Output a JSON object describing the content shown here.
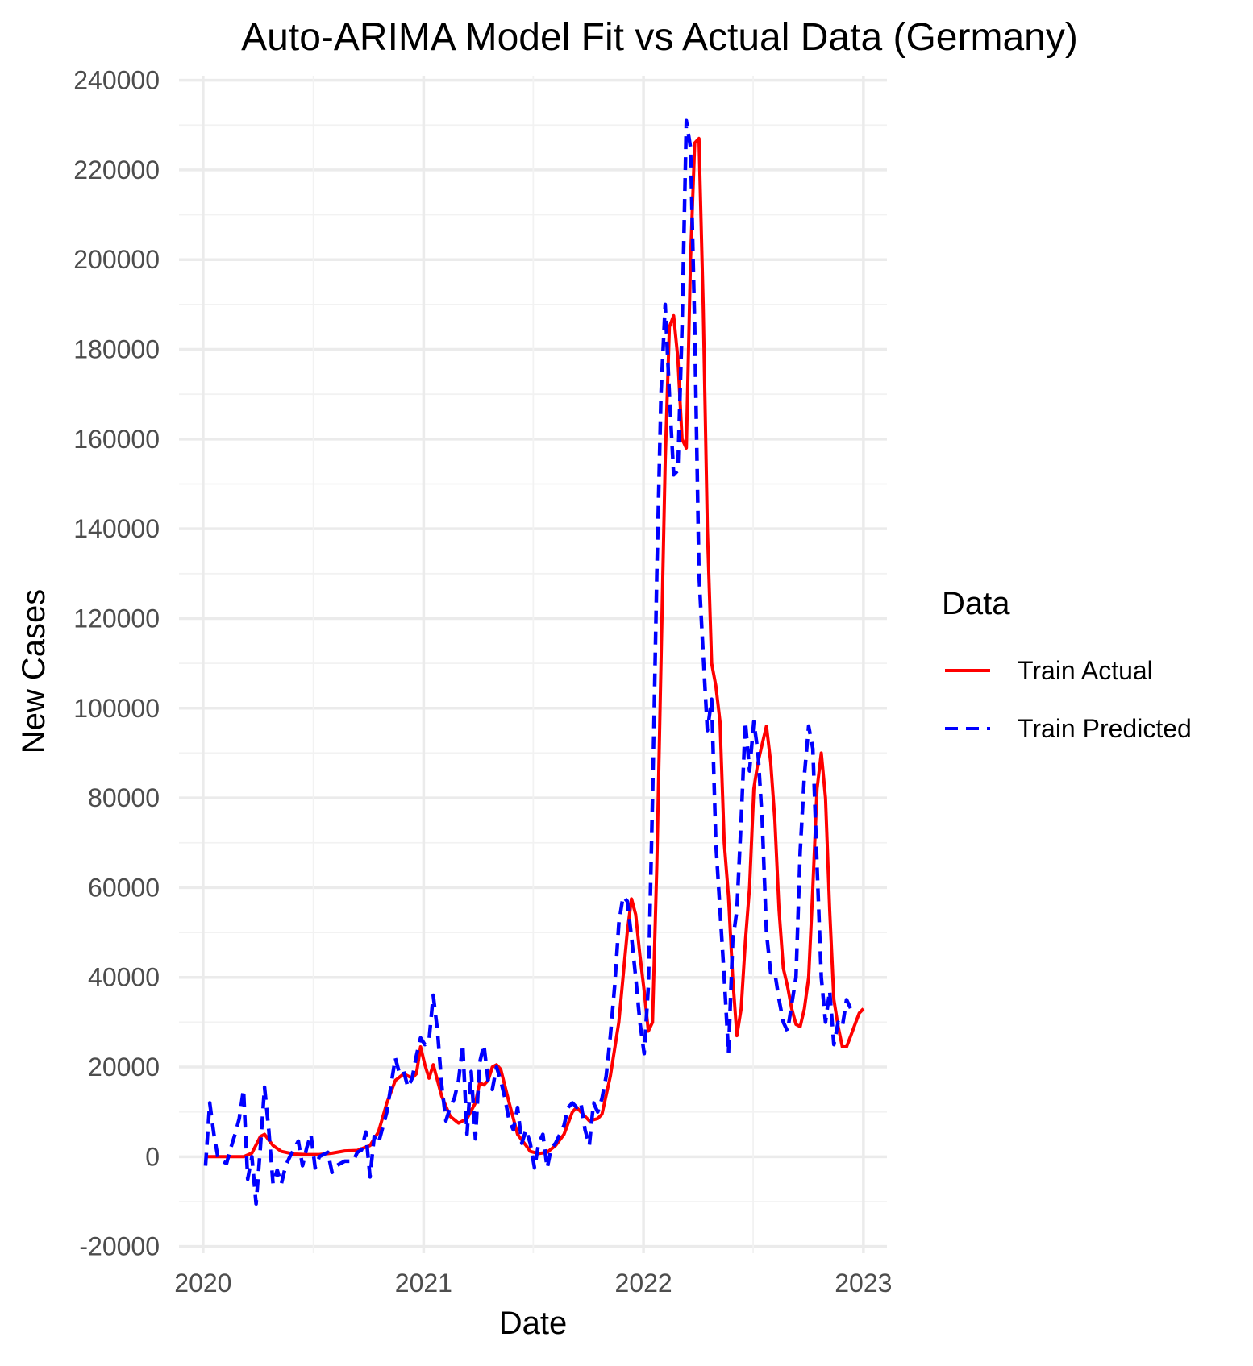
{
  "chart_data": {
    "type": "line",
    "title": "Auto-ARIMA Model Fit vs Actual Data (Germany)",
    "xlabel": "Date",
    "ylabel": "New Cases",
    "x_ticks": [
      "2020",
      "2021",
      "2022",
      "2023"
    ],
    "y_ticks": [
      -20000,
      0,
      20000,
      40000,
      60000,
      80000,
      100000,
      120000,
      140000,
      160000,
      180000,
      200000,
      220000,
      240000
    ],
    "xlim": [
      "2019-11-22",
      "2023-02-09"
    ],
    "ylim": [
      -21500,
      241000
    ],
    "grid": true,
    "legend": {
      "title": "Data",
      "position": "right"
    },
    "series": [
      {
        "name": "Train Actual",
        "color": "#ff0000",
        "dash": "solid",
        "points": [
          [
            "2020-01-05",
            0
          ],
          [
            "2020-01-26",
            0
          ],
          [
            "2020-02-16",
            0
          ],
          [
            "2020-03-08",
            0
          ],
          [
            "2020-03-22",
            800
          ],
          [
            "2020-04-05",
            4500
          ],
          [
            "2020-04-12",
            5000
          ],
          [
            "2020-04-26",
            2500
          ],
          [
            "2020-05-10",
            1200
          ],
          [
            "2020-05-31",
            600
          ],
          [
            "2020-06-21",
            500
          ],
          [
            "2020-07-12",
            500
          ],
          [
            "2020-08-02",
            800
          ],
          [
            "2020-08-23",
            1300
          ],
          [
            "2020-09-13",
            1400
          ],
          [
            "2020-10-04",
            2500
          ],
          [
            "2020-10-18",
            5500
          ],
          [
            "2020-11-01",
            12000
          ],
          [
            "2020-11-15",
            17000
          ],
          [
            "2020-11-29",
            18500
          ],
          [
            "2020-12-13",
            17500
          ],
          [
            "2020-12-20",
            18500
          ],
          [
            "2020-12-27",
            24500
          ],
          [
            "2021-01-03",
            20500
          ],
          [
            "2021-01-10",
            17500
          ],
          [
            "2021-01-17",
            20500
          ],
          [
            "2021-01-31",
            13500
          ],
          [
            "2021-02-14",
            9000
          ],
          [
            "2021-02-28",
            7500
          ],
          [
            "2021-03-14",
            8500
          ],
          [
            "2021-03-28",
            12000
          ],
          [
            "2021-04-04",
            16500
          ],
          [
            "2021-04-11",
            16000
          ],
          [
            "2021-04-18",
            17000
          ],
          [
            "2021-04-25",
            20000
          ],
          [
            "2021-05-02",
            20500
          ],
          [
            "2021-05-09",
            19500
          ],
          [
            "2021-05-23",
            12000
          ],
          [
            "2021-06-06",
            5000
          ],
          [
            "2021-06-20",
            2500
          ],
          [
            "2021-06-27",
            1200
          ],
          [
            "2021-07-11",
            700
          ],
          [
            "2021-07-25",
            1000
          ],
          [
            "2021-08-08",
            2500
          ],
          [
            "2021-08-22",
            5000
          ],
          [
            "2021-09-05",
            10000
          ],
          [
            "2021-09-12",
            11000
          ],
          [
            "2021-09-19",
            10000
          ],
          [
            "2021-10-03",
            8000
          ],
          [
            "2021-10-17",
            8500
          ],
          [
            "2021-10-24",
            9500
          ],
          [
            "2021-11-07",
            18000
          ],
          [
            "2021-11-21",
            30000
          ],
          [
            "2021-12-05",
            50000
          ],
          [
            "2021-12-12",
            57500
          ],
          [
            "2021-12-19",
            54000
          ],
          [
            "2021-12-26",
            45000
          ],
          [
            "2022-01-02",
            37000
          ],
          [
            "2022-01-09",
            28000
          ],
          [
            "2022-01-16",
            30000
          ],
          [
            "2022-01-23",
            65000
          ],
          [
            "2022-01-30",
            110000
          ],
          [
            "2022-02-06",
            155000
          ],
          [
            "2022-02-13",
            185000
          ],
          [
            "2022-02-20",
            187500
          ],
          [
            "2022-02-27",
            178000
          ],
          [
            "2022-03-06",
            160000
          ],
          [
            "2022-03-13",
            158000
          ],
          [
            "2022-03-20",
            200000
          ],
          [
            "2022-03-27",
            226000
          ],
          [
            "2022-04-03",
            227000
          ],
          [
            "2022-04-10",
            190000
          ],
          [
            "2022-04-17",
            140000
          ],
          [
            "2022-04-24",
            110000
          ],
          [
            "2022-05-01",
            105000
          ],
          [
            "2022-05-08",
            97000
          ],
          [
            "2022-05-15",
            70000
          ],
          [
            "2022-05-22",
            58000
          ],
          [
            "2022-05-29",
            40000
          ],
          [
            "2022-06-05",
            27000
          ],
          [
            "2022-06-12",
            33000
          ],
          [
            "2022-06-19",
            48000
          ],
          [
            "2022-06-26",
            60000
          ],
          [
            "2022-07-03",
            82000
          ],
          [
            "2022-07-10",
            88000
          ],
          [
            "2022-07-17",
            92000
          ],
          [
            "2022-07-24",
            96000
          ],
          [
            "2022-07-31",
            88000
          ],
          [
            "2022-08-07",
            75000
          ],
          [
            "2022-08-14",
            55000
          ],
          [
            "2022-08-21",
            42000
          ],
          [
            "2022-08-28",
            38000
          ],
          [
            "2022-09-04",
            33000
          ],
          [
            "2022-09-11",
            29500
          ],
          [
            "2022-09-18",
            29000
          ],
          [
            "2022-09-25",
            33000
          ],
          [
            "2022-10-02",
            40000
          ],
          [
            "2022-10-09",
            60000
          ],
          [
            "2022-10-16",
            82000
          ],
          [
            "2022-10-23",
            90000
          ],
          [
            "2022-10-30",
            80000
          ],
          [
            "2022-11-06",
            55000
          ],
          [
            "2022-11-13",
            35000
          ],
          [
            "2022-11-20",
            29000
          ],
          [
            "2022-11-27",
            24500
          ],
          [
            "2022-12-04",
            24500
          ],
          [
            "2022-12-11",
            27000
          ],
          [
            "2022-12-18",
            29500
          ],
          [
            "2022-12-25",
            32000
          ],
          [
            "2023-01-01",
            33000
          ]
        ]
      },
      {
        "name": "Train Predicted",
        "color": "#0000ff",
        "dash": "dashed",
        "points": [
          [
            "2020-01-05",
            -2000
          ],
          [
            "2020-01-12",
            12000
          ],
          [
            "2020-01-19",
            5000
          ],
          [
            "2020-01-26",
            -500
          ],
          [
            "2020-02-09",
            -1500
          ],
          [
            "2020-02-16",
            2000
          ],
          [
            "2020-02-23",
            5000
          ],
          [
            "2020-03-01",
            8500
          ],
          [
            "2020-03-08",
            15000
          ],
          [
            "2020-03-15",
            -5000
          ],
          [
            "2020-03-22",
            0
          ],
          [
            "2020-03-29",
            -10500
          ],
          [
            "2020-04-05",
            2000
          ],
          [
            "2020-04-12",
            15500
          ],
          [
            "2020-04-19",
            6000
          ],
          [
            "2020-04-26",
            -6000
          ],
          [
            "2020-05-03",
            -3000
          ],
          [
            "2020-05-10",
            -6000
          ],
          [
            "2020-05-17",
            -2000
          ],
          [
            "2020-05-24",
            0
          ],
          [
            "2020-06-07",
            3500
          ],
          [
            "2020-06-14",
            -2000
          ],
          [
            "2020-06-21",
            2000
          ],
          [
            "2020-06-28",
            5000
          ],
          [
            "2020-07-05",
            -2500
          ],
          [
            "2020-07-12",
            0
          ],
          [
            "2020-07-26",
            1000
          ],
          [
            "2020-08-02",
            -3500
          ],
          [
            "2020-08-09",
            -2000
          ],
          [
            "2020-08-23",
            -1000
          ],
          [
            "2020-09-06",
            -1000
          ],
          [
            "2020-09-13",
            1000
          ],
          [
            "2020-09-20",
            1500
          ],
          [
            "2020-09-27",
            5500
          ],
          [
            "2020-10-04",
            -4500
          ],
          [
            "2020-10-11",
            4500
          ],
          [
            "2020-10-18",
            3000
          ],
          [
            "2020-10-25",
            6500
          ],
          [
            "2020-11-01",
            10000
          ],
          [
            "2020-11-08",
            16000
          ],
          [
            "2020-11-15",
            22000
          ],
          [
            "2020-11-22",
            18500
          ],
          [
            "2020-11-29",
            19000
          ],
          [
            "2020-12-06",
            15500
          ],
          [
            "2020-12-13",
            17500
          ],
          [
            "2020-12-20",
            22500
          ],
          [
            "2020-12-27",
            26500
          ],
          [
            "2021-01-03",
            25000
          ],
          [
            "2021-01-10",
            26000
          ],
          [
            "2021-01-17",
            36000
          ],
          [
            "2021-01-24",
            28000
          ],
          [
            "2021-01-31",
            16000
          ],
          [
            "2021-02-07",
            8000
          ],
          [
            "2021-02-14",
            11000
          ],
          [
            "2021-02-21",
            13000
          ],
          [
            "2021-02-28",
            17000
          ],
          [
            "2021-03-07",
            25000
          ],
          [
            "2021-03-14",
            5000
          ],
          [
            "2021-03-21",
            19000
          ],
          [
            "2021-03-28",
            4000
          ],
          [
            "2021-04-04",
            21000
          ],
          [
            "2021-04-11",
            25000
          ],
          [
            "2021-04-18",
            17000
          ],
          [
            "2021-04-25",
            15000
          ],
          [
            "2021-05-02",
            20000
          ],
          [
            "2021-05-09",
            17000
          ],
          [
            "2021-05-16",
            13000
          ],
          [
            "2021-05-23",
            8000
          ],
          [
            "2021-05-30",
            6000
          ],
          [
            "2021-06-06",
            11000
          ],
          [
            "2021-06-13",
            3000
          ],
          [
            "2021-06-20",
            6000
          ],
          [
            "2021-06-27",
            3000
          ],
          [
            "2021-07-04",
            -2500
          ],
          [
            "2021-07-11",
            3000
          ],
          [
            "2021-07-18",
            5000
          ],
          [
            "2021-07-25",
            -2500
          ],
          [
            "2021-08-01",
            2000
          ],
          [
            "2021-08-08",
            3000
          ],
          [
            "2021-08-15",
            5000
          ],
          [
            "2021-08-22",
            7000
          ],
          [
            "2021-08-29",
            11000
          ],
          [
            "2021-09-05",
            12000
          ],
          [
            "2021-09-12",
            11000
          ],
          [
            "2021-09-19",
            12000
          ],
          [
            "2021-09-26",
            6000
          ],
          [
            "2021-10-03",
            2500
          ],
          [
            "2021-10-10",
            12000
          ],
          [
            "2021-10-17",
            10000
          ],
          [
            "2021-10-24",
            13000
          ],
          [
            "2021-10-31",
            18000
          ],
          [
            "2021-11-07",
            27000
          ],
          [
            "2021-11-14",
            38000
          ],
          [
            "2021-11-21",
            52000
          ],
          [
            "2021-11-28",
            58000
          ],
          [
            "2021-12-05",
            57000
          ],
          [
            "2021-12-12",
            49000
          ],
          [
            "2021-12-19",
            40000
          ],
          [
            "2021-12-26",
            30000
          ],
          [
            "2022-01-02",
            23000
          ],
          [
            "2022-01-09",
            38000
          ],
          [
            "2022-01-16",
            80000
          ],
          [
            "2022-01-23",
            130000
          ],
          [
            "2022-01-30",
            170000
          ],
          [
            "2022-02-06",
            190000
          ],
          [
            "2022-02-13",
            170000
          ],
          [
            "2022-02-20",
            152000
          ],
          [
            "2022-02-27",
            153000
          ],
          [
            "2022-03-06",
            185000
          ],
          [
            "2022-03-13",
            231000
          ],
          [
            "2022-03-20",
            225000
          ],
          [
            "2022-03-27",
            185000
          ],
          [
            "2022-04-03",
            130000
          ],
          [
            "2022-04-10",
            112000
          ],
          [
            "2022-04-17",
            95000
          ],
          [
            "2022-04-24",
            102000
          ],
          [
            "2022-05-01",
            70000
          ],
          [
            "2022-05-08",
            55000
          ],
          [
            "2022-05-15",
            40000
          ],
          [
            "2022-05-22",
            23000
          ],
          [
            "2022-05-29",
            48000
          ],
          [
            "2022-06-05",
            55000
          ],
          [
            "2022-06-12",
            75000
          ],
          [
            "2022-06-19",
            97000
          ],
          [
            "2022-06-26",
            86000
          ],
          [
            "2022-07-03",
            97000
          ],
          [
            "2022-07-10",
            90000
          ],
          [
            "2022-07-17",
            75000
          ],
          [
            "2022-07-24",
            50000
          ],
          [
            "2022-07-31",
            41000
          ],
          [
            "2022-08-07",
            41000
          ],
          [
            "2022-08-14",
            35000
          ],
          [
            "2022-08-21",
            30000
          ],
          [
            "2022-08-28",
            28000
          ],
          [
            "2022-09-04",
            34000
          ],
          [
            "2022-09-11",
            40000
          ],
          [
            "2022-09-18",
            68000
          ],
          [
            "2022-09-25",
            85000
          ],
          [
            "2022-10-02",
            96000
          ],
          [
            "2022-10-09",
            91000
          ],
          [
            "2022-10-16",
            65000
          ],
          [
            "2022-10-23",
            40000
          ],
          [
            "2022-10-30",
            30000
          ],
          [
            "2022-11-06",
            37000
          ],
          [
            "2022-11-13",
            25000
          ],
          [
            "2022-11-20",
            30000
          ],
          [
            "2022-11-27",
            29000
          ],
          [
            "2022-12-04",
            35000
          ],
          [
            "2022-12-11",
            33000
          ]
        ]
      }
    ]
  }
}
